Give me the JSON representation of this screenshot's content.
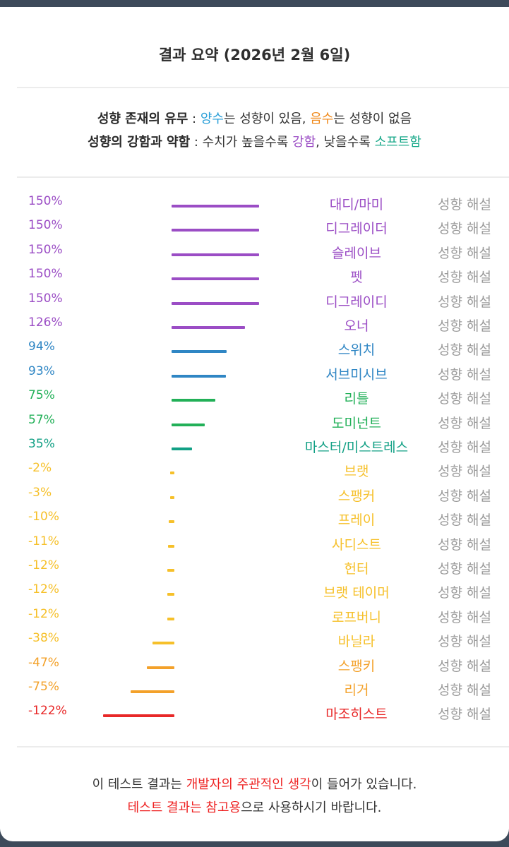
{
  "header": {
    "title": "결과 요약 (2026년 2월 6일)"
  },
  "legend": {
    "line1_head": "성향 존재의 유무",
    "line1_sep": " : ",
    "positive_word": "양수",
    "line1_mid": "는 성향이 있음, ",
    "negative_word": "음수",
    "line1_tail": "는 성향이 없음",
    "line2_head": "성향의 강함과 약함",
    "line2_sep": " : 수치가 높을수록 ",
    "strong_word": "강함",
    "line2_mid": ", 낮을수록 ",
    "soft_word": "소프트함"
  },
  "chart_data": {
    "type": "bar",
    "orientation": "horizontal",
    "zero_baseline": true,
    "categories": [
      "대디/마미",
      "디그레이더",
      "슬레이브",
      "펫",
      "디그레이디",
      "오너",
      "스위치",
      "서브미시브",
      "리틀",
      "도미넌트",
      "마스터/미스트레스",
      "브랫",
      "스팽커",
      "프레이",
      "사디스트",
      "헌터",
      "브랫 테이머",
      "로프버니",
      "바닐라",
      "스팽키",
      "리거",
      "마조히스트"
    ],
    "values": [
      150,
      150,
      150,
      150,
      150,
      126,
      94,
      93,
      75,
      57,
      35,
      -2,
      -3,
      -10,
      -11,
      -12,
      -12,
      -12,
      -38,
      -47,
      -75,
      -122
    ],
    "value_labels": [
      "150%",
      "150%",
      "150%",
      "150%",
      "150%",
      "126%",
      "94%",
      "93%",
      "75%",
      "57%",
      "35%",
      "-2%",
      "-3%",
      "-10%",
      "-11%",
      "-12%",
      "-12%",
      "-12%",
      "-38%",
      "-47%",
      "-75%",
      "-122%"
    ],
    "colors": [
      "#9b4dc5",
      "#9b4dc5",
      "#9b4dc5",
      "#9b4dc5",
      "#9b4dc5",
      "#9b4dc5",
      "#2f86c4",
      "#2f86c4",
      "#22b058",
      "#22b058",
      "#12a085",
      "#f6c02a",
      "#f6c02a",
      "#f6c02a",
      "#f6c02a",
      "#f6c02a",
      "#f6c02a",
      "#f6c02a",
      "#f6c02a",
      "#f3a12a",
      "#f3a12a",
      "#e82828"
    ],
    "row_action_label": "성향 해설"
  },
  "footer": {
    "line1_pre": "이 테스트 결과는 ",
    "line1_hl1": "개발자의 주관적인 생각",
    "line1_post": "이 들어가 있습니다.",
    "line2_hl": "테스트 결과는 참고용",
    "line2_post": "으로 사용하시기 바랍니다."
  }
}
